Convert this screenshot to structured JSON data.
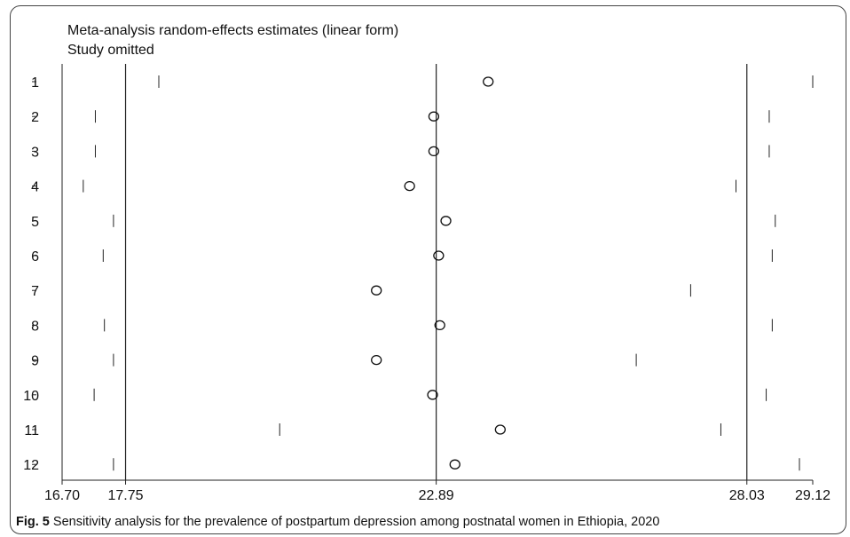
{
  "chart_data": {
    "type": "scatter",
    "title": "Meta-analysis random-effects estimates (linear form)",
    "subtitle": "Study omitted",
    "xlim": [
      16.7,
      29.12
    ],
    "x_ticks": [
      "16.70",
      "17.75",
      "22.89",
      "28.03",
      "29.12"
    ],
    "reference_lines": [
      17.75,
      22.89,
      28.03
    ],
    "studies": [
      {
        "label": "1",
        "lower": 18.3,
        "estimate": 23.75,
        "upper": 29.12
      },
      {
        "label": "2",
        "lower": 17.25,
        "estimate": 22.85,
        "upper": 28.4
      },
      {
        "label": "3",
        "lower": 17.25,
        "estimate": 22.85,
        "upper": 28.4
      },
      {
        "label": "4",
        "lower": 17.05,
        "estimate": 22.45,
        "upper": 27.85
      },
      {
        "label": "5",
        "lower": 17.55,
        "estimate": 23.05,
        "upper": 28.5
      },
      {
        "label": "6",
        "lower": 17.38,
        "estimate": 22.93,
        "upper": 28.45
      },
      {
        "label": "7",
        "lower": 16.7,
        "estimate": 21.9,
        "upper": 27.1
      },
      {
        "label": "8",
        "lower": 17.4,
        "estimate": 22.95,
        "upper": 28.45
      },
      {
        "label": "9",
        "lower": 17.55,
        "estimate": 21.9,
        "upper": 26.2
      },
      {
        "label": "10",
        "lower": 17.23,
        "estimate": 22.83,
        "upper": 28.35
      },
      {
        "label": "11",
        "lower": 20.3,
        "estimate": 23.95,
        "upper": 27.6
      },
      {
        "label": "12",
        "lower": 17.55,
        "estimate": 23.2,
        "upper": 28.9
      }
    ]
  },
  "caption": {
    "prefix": "Fig. 5",
    "text": " Sensitivity analysis for the prevalence of postpartum depression among postnatal women in Ethiopia, 2020"
  }
}
